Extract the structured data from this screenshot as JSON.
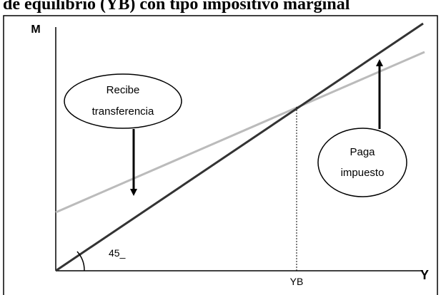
{
  "title": "de equilibrio (YB) con tipo impositivo marginal",
  "axes": {
    "y_label": "M",
    "x_label": "Y",
    "equilibrium_label": "YB",
    "angle_label": "45_"
  },
  "callouts": [
    {
      "lines": [
        "Recibe",
        "transferencia"
      ]
    },
    {
      "lines": [
        "Paga",
        "impuesto"
      ]
    }
  ]
}
